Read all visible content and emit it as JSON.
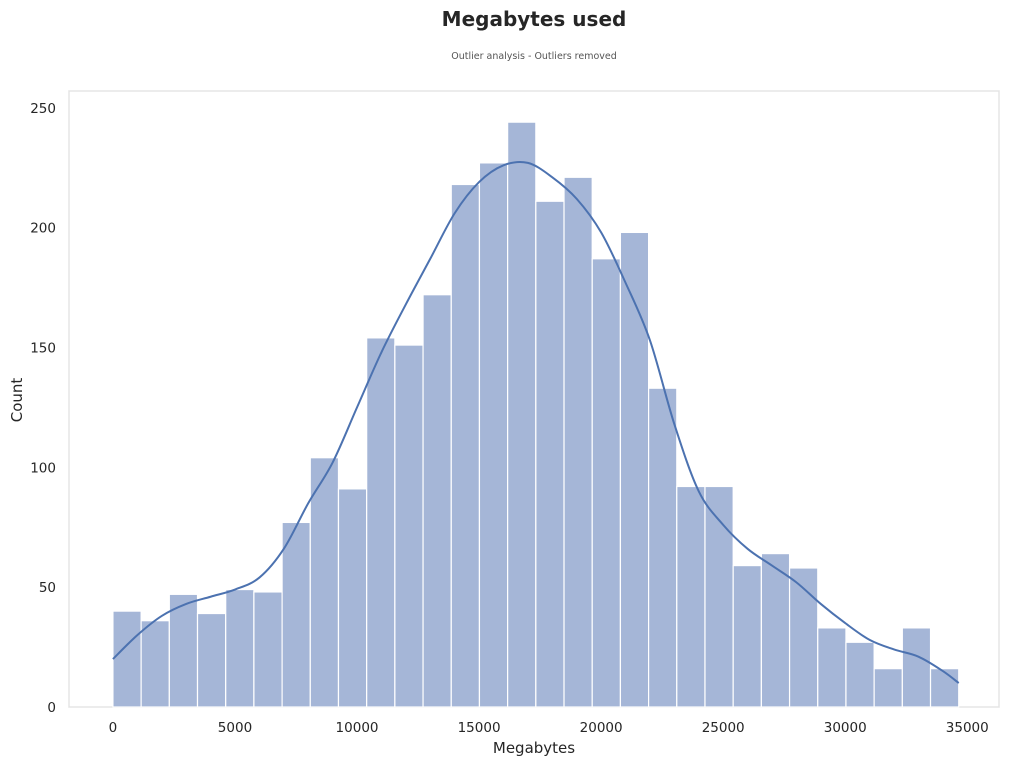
{
  "chart_data": {
    "type": "bar",
    "title": "Megabytes used",
    "subtitle": "Outlier analysis - Outliers removed",
    "xlabel": "Megabytes",
    "ylabel": "Count",
    "xlim": [
      -1800,
      36300
    ],
    "ylim": [
      0,
      257
    ],
    "xticks": [
      0,
      5000,
      10000,
      15000,
      20000,
      25000,
      30000,
      35000
    ],
    "yticks": [
      0,
      50,
      100,
      150,
      200,
      250
    ],
    "grid": false,
    "bin_width": 1155,
    "bin_start": 0,
    "counts": [
      40,
      36,
      47,
      39,
      49,
      48,
      77,
      104,
      91,
      154,
      151,
      172,
      218,
      227,
      244,
      211,
      221,
      187,
      198,
      133,
      92,
      92,
      59,
      64,
      58,
      33,
      27,
      16,
      33,
      16
    ],
    "kde": [
      [
        0,
        20
      ],
      [
        1000,
        30
      ],
      [
        2000,
        38
      ],
      [
        3000,
        43
      ],
      [
        4000,
        46
      ],
      [
        5000,
        49
      ],
      [
        6000,
        54
      ],
      [
        7000,
        66
      ],
      [
        8000,
        85
      ],
      [
        9000,
        102
      ],
      [
        10000,
        125
      ],
      [
        11000,
        148
      ],
      [
        12000,
        168
      ],
      [
        13000,
        187
      ],
      [
        14000,
        206
      ],
      [
        15000,
        219
      ],
      [
        16000,
        226
      ],
      [
        17000,
        227
      ],
      [
        18000,
        221
      ],
      [
        19000,
        212
      ],
      [
        20000,
        198
      ],
      [
        21000,
        177
      ],
      [
        22000,
        153
      ],
      [
        23000,
        118
      ],
      [
        24000,
        90
      ],
      [
        25000,
        76
      ],
      [
        26000,
        66
      ],
      [
        27000,
        59
      ],
      [
        28000,
        52
      ],
      [
        29000,
        43
      ],
      [
        30000,
        35
      ],
      [
        31000,
        28
      ],
      [
        32000,
        24
      ],
      [
        33000,
        21
      ],
      [
        34000,
        15
      ],
      [
        34650,
        10
      ]
    ],
    "colors": {
      "bar": "#a5b6d7",
      "line": "#4c72b0"
    }
  }
}
